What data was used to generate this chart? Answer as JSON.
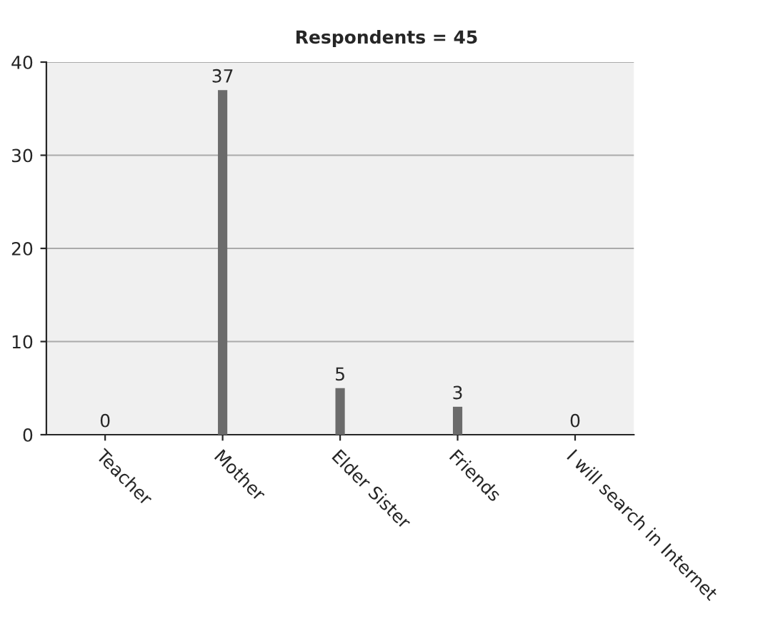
{
  "chart_data": {
    "type": "bar",
    "title": "Respondents = 45",
    "categories": [
      "Teacher",
      "Mother",
      "Elder Sister",
      "Friends",
      "I will search in Internet"
    ],
    "values": [
      0,
      37,
      5,
      3,
      0
    ],
    "color": "#6b6b6b",
    "ylim": [
      0,
      40
    ],
    "yticks": [
      0,
      10,
      20,
      30,
      40
    ],
    "grid": "y",
    "data_labels": true,
    "legend": false
  }
}
